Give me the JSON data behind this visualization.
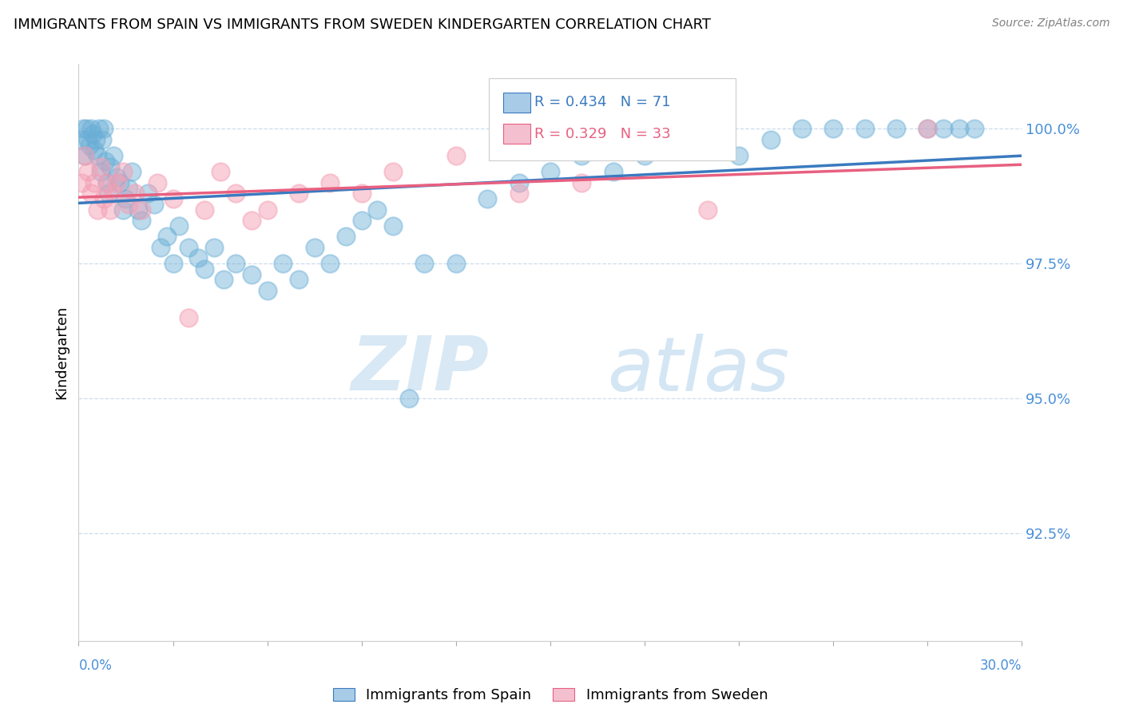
{
  "title": "IMMIGRANTS FROM SPAIN VS IMMIGRANTS FROM SWEDEN KINDERGARTEN CORRELATION CHART",
  "source": "Source: ZipAtlas.com",
  "ylabel": "Kindergarten",
  "xlim": [
    0.0,
    30.0
  ],
  "ylim": [
    90.5,
    101.2
  ],
  "yticks": [
    92.5,
    95.0,
    97.5,
    100.0
  ],
  "ytick_labels": [
    "92.5%",
    "95.0%",
    "97.5%",
    "100.0%"
  ],
  "spain_color": "#6aaed6",
  "sweden_color": "#f4a0b5",
  "spain_line_color": "#3a7abf",
  "sweden_line_color": "#e86080",
  "spain_R": 0.434,
  "spain_N": 71,
  "sweden_R": 0.329,
  "sweden_N": 33,
  "legend_spain": "Immigrants from Spain",
  "legend_sweden": "Immigrants from Sweden",
  "watermark_zip": "ZIP",
  "watermark_atlas": "atlas",
  "spain_x": [
    0.1,
    0.15,
    0.2,
    0.25,
    0.3,
    0.35,
    0.4,
    0.45,
    0.5,
    0.55,
    0.6,
    0.65,
    0.7,
    0.75,
    0.8,
    0.85,
    0.9,
    0.95,
    1.0,
    1.1,
    1.2,
    1.3,
    1.4,
    1.5,
    1.6,
    1.7,
    1.9,
    2.0,
    2.2,
    2.4,
    2.6,
    2.8,
    3.0,
    3.2,
    3.5,
    3.8,
    4.0,
    4.3,
    4.6,
    5.0,
    5.5,
    6.0,
    6.5,
    7.0,
    7.5,
    8.0,
    8.5,
    9.0,
    9.5,
    10.0,
    10.5,
    11.0,
    12.0,
    13.0,
    14.0,
    15.0,
    16.0,
    17.0,
    18.0,
    19.0,
    20.0,
    21.0,
    22.0,
    23.0,
    24.0,
    25.0,
    26.0,
    27.0,
    27.5,
    28.0,
    28.5
  ],
  "spain_y": [
    99.8,
    100.0,
    99.5,
    100.0,
    99.8,
    99.7,
    100.0,
    99.9,
    99.6,
    99.8,
    99.5,
    100.0,
    99.2,
    99.8,
    100.0,
    99.4,
    99.0,
    98.8,
    99.3,
    99.5,
    99.1,
    99.0,
    98.5,
    98.7,
    98.9,
    99.2,
    98.5,
    98.3,
    98.8,
    98.6,
    97.8,
    98.0,
    97.5,
    98.2,
    97.8,
    97.6,
    97.4,
    97.8,
    97.2,
    97.5,
    97.3,
    97.0,
    97.5,
    97.2,
    97.8,
    97.5,
    98.0,
    98.3,
    98.5,
    98.2,
    95.0,
    97.5,
    97.5,
    98.7,
    99.0,
    99.2,
    99.5,
    99.2,
    99.5,
    99.8,
    100.0,
    99.5,
    99.8,
    100.0,
    100.0,
    100.0,
    100.0,
    100.0,
    100.0,
    100.0,
    100.0
  ],
  "sweden_x": [
    0.1,
    0.2,
    0.3,
    0.4,
    0.5,
    0.6,
    0.7,
    0.8,
    0.9,
    1.0,
    1.1,
    1.2,
    1.4,
    1.6,
    1.8,
    2.0,
    2.5,
    3.0,
    3.5,
    4.0,
    4.5,
    5.0,
    5.5,
    6.0,
    7.0,
    8.0,
    9.0,
    10.0,
    12.0,
    14.0,
    16.0,
    20.0,
    27.0
  ],
  "sweden_y": [
    99.0,
    99.5,
    99.2,
    98.8,
    99.0,
    98.5,
    99.3,
    98.7,
    99.0,
    98.5,
    98.8,
    99.0,
    99.2,
    98.6,
    98.8,
    98.5,
    99.0,
    98.7,
    96.5,
    98.5,
    99.2,
    98.8,
    98.3,
    98.5,
    98.8,
    99.0,
    98.8,
    99.2,
    99.5,
    98.8,
    99.0,
    98.5,
    100.0
  ]
}
